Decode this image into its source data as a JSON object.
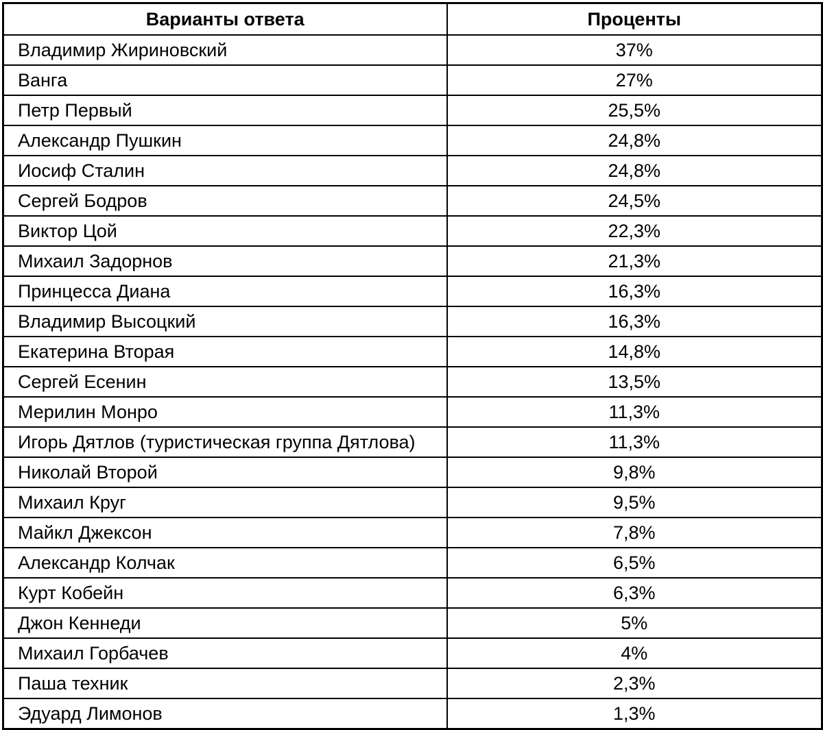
{
  "colors": {
    "border": "#000000",
    "background": "#ffffff",
    "text": "#000000"
  },
  "table": {
    "headers": {
      "answer": "Варианты ответа",
      "percent": "Проценты"
    },
    "rows": [
      [
        "Владимир Жириновский",
        "37%"
      ],
      [
        "Ванга",
        "27%"
      ],
      [
        "Петр Первый",
        "25,5%"
      ],
      [
        "Александр Пушкин",
        "24,8%"
      ],
      [
        "Иосиф Сталин",
        "24,8%"
      ],
      [
        "Сергей Бодров",
        "24,5%"
      ],
      [
        "Виктор Цой",
        "22,3%"
      ],
      [
        "Михаил Задорнов",
        "21,3%"
      ],
      [
        "Принцесса Диана",
        "16,3%"
      ],
      [
        "Владимир Высоцкий",
        "16,3%"
      ],
      [
        "Екатерина Вторая",
        "14,8%"
      ],
      [
        "Сергей Есенин",
        "13,5%"
      ],
      [
        "Мерилин Монро",
        "11,3%"
      ],
      [
        "Игорь Дятлов (туристическая группа Дятлова)",
        "11,3%"
      ],
      [
        "Николай Второй",
        "9,8%"
      ],
      [
        "Михаил Круг",
        "9,5%"
      ],
      [
        "Майкл Джексон",
        "7,8%"
      ],
      [
        "Александр Колчак",
        "6,5%"
      ],
      [
        "Курт Кобейн",
        "6,3%"
      ],
      [
        "Джон Кеннеди",
        "5%"
      ],
      [
        "Михаил Горбачев",
        "4%"
      ],
      [
        "Паша техник",
        "2,3%"
      ],
      [
        "Эдуард Лимонов",
        "1,3%"
      ]
    ]
  },
  "chart_data": {
    "type": "table",
    "title": "",
    "columns": [
      "Варианты ответа",
      "Проценты"
    ],
    "categories": [
      "Владимир Жириновский",
      "Ванга",
      "Петр Первый",
      "Александр Пушкин",
      "Иосиф Сталин",
      "Сергей Бодров",
      "Виктор Цой",
      "Михаил Задорнов",
      "Принцесса Диана",
      "Владимир Высоцкий",
      "Екатерина Вторая",
      "Сергей Есенин",
      "Мерилин Монро",
      "Игорь Дятлов (туристическая группа Дятлова)",
      "Николай Второй",
      "Михаил Круг",
      "Майкл Джексон",
      "Александр Колчак",
      "Курт Кобейн",
      "Джон Кеннеди",
      "Михаил Горбачев",
      "Паша техник",
      "Эдуард Лимонов"
    ],
    "values": [
      37,
      27,
      25.5,
      24.8,
      24.8,
      24.5,
      22.3,
      21.3,
      16.3,
      16.3,
      14.8,
      13.5,
      11.3,
      11.3,
      9.8,
      9.5,
      7.8,
      6.5,
      6.3,
      5,
      4,
      2.3,
      1.3
    ],
    "values_display": [
      "37%",
      "27%",
      "25,5%",
      "24,8%",
      "24,8%",
      "24,5%",
      "22,3%",
      "21,3%",
      "16,3%",
      "16,3%",
      "14,8%",
      "13,5%",
      "11,3%",
      "11,3%",
      "9,8%",
      "9,5%",
      "7,8%",
      "6,5%",
      "6,3%",
      "5%",
      "4%",
      "2,3%",
      "1,3%"
    ],
    "unit": "%"
  }
}
